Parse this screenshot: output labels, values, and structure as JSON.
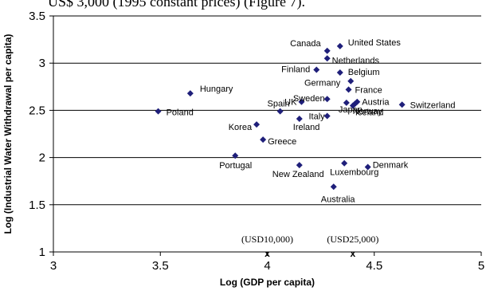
{
  "header_text": "US$ 3,000 (1995 constant prices) (Figure 7).",
  "chart_data": {
    "type": "scatter",
    "xlabel": "Log (GDP per capita)",
    "ylabel": "Log (Industrial Water Withdrawal per capita)",
    "xlim": [
      3,
      5
    ],
    "ylim": [
      1,
      3.5
    ],
    "x_ticks": [
      "3",
      "3.5",
      "4",
      "4.5",
      "5"
    ],
    "y_ticks": [
      "1",
      "1.5",
      "2",
      "2.5",
      "3",
      "3.5"
    ],
    "gridlines": "horizontal",
    "marker": "diamond",
    "marker_color": "#1f1f7a",
    "points": [
      {
        "label": "Canada",
        "x": 4.28,
        "y": 3.13
      },
      {
        "label": "United States",
        "x": 4.34,
        "y": 3.18
      },
      {
        "label": "Netherlands",
        "x": 4.28,
        "y": 3.05
      },
      {
        "label": "Finland",
        "x": 4.23,
        "y": 2.93
      },
      {
        "label": "Belgium",
        "x": 4.34,
        "y": 2.9
      },
      {
        "label": "Germany",
        "x": 4.39,
        "y": 2.81
      },
      {
        "label": "France",
        "x": 4.38,
        "y": 2.72
      },
      {
        "label": "Hungary",
        "x": 3.64,
        "y": 2.68
      },
      {
        "label": "UK",
        "x": 4.16,
        "y": 2.59
      },
      {
        "label": "Sweden",
        "x": 4.28,
        "y": 2.62
      },
      {
        "label": "Austria",
        "x": 4.42,
        "y": 2.59
      },
      {
        "label": "Switzerland",
        "x": 4.63,
        "y": 2.56
      },
      {
        "label": "Japan",
        "x": 4.37,
        "y": 2.58
      },
      {
        "label": "Iceland",
        "x": 4.4,
        "y": 2.55
      },
      {
        "label": "Poland",
        "x": 3.49,
        "y": 2.49
      },
      {
        "label": "Spain",
        "x": 4.06,
        "y": 2.49
      },
      {
        "label": "Italy",
        "x": 4.28,
        "y": 2.44
      },
      {
        "label": "Norway",
        "x": 4.41,
        "y": 2.57
      },
      {
        "label": "Ireland",
        "x": 4.15,
        "y": 2.41
      },
      {
        "label": "Korea",
        "x": 3.95,
        "y": 2.35
      },
      {
        "label": "Greece",
        "x": 3.98,
        "y": 2.19
      },
      {
        "label": "Portugal",
        "x": 3.85,
        "y": 2.02
      },
      {
        "label": "New Zealand",
        "x": 4.15,
        "y": 1.92
      },
      {
        "label": "Luxembourg",
        "x": 4.36,
        "y": 1.94
      },
      {
        "label": "Denmark",
        "x": 4.47,
        "y": 1.9
      },
      {
        "label": "Australia",
        "x": 4.31,
        "y": 1.69
      }
    ],
    "annotations": [
      {
        "text": "(USD10,000)",
        "mark": "x",
        "x": 4.0
      },
      {
        "text": "(USD25,000)",
        "mark": "x",
        "x": 4.4
      }
    ]
  }
}
